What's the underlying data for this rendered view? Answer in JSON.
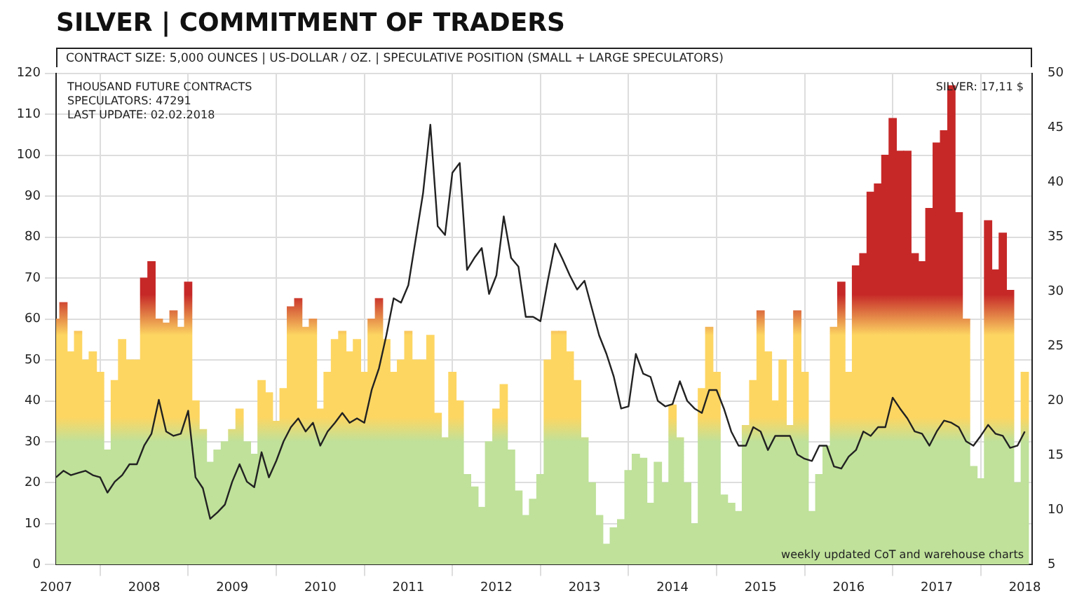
{
  "chart_data": {
    "type": "bar",
    "title": "SILVER | COMMITMENT OF TRADERS",
    "subtitle": "CONTRACT SIZE: 5,000 OUNCES | US-DOLLAR / OZ. | SPECULATIVE POSITION (SMALL + LARGE SPECULATORS)",
    "annotations": [
      "THOUSAND FUTURE CONTRACTS",
      "SPECULATORS: 47291",
      "LAST UPDATE: 02.02.2018",
      "SILVER: 17,11 $",
      "weekly updated CoT and warehouse charts"
    ],
    "x": [
      "2007-01",
      "2007-02",
      "2007-03",
      "2007-04",
      "2007-05",
      "2007-06",
      "2007-07",
      "2007-08",
      "2007-09",
      "2007-10",
      "2007-11",
      "2007-12",
      "2008-01",
      "2008-02",
      "2008-03",
      "2008-04",
      "2008-05",
      "2008-06",
      "2008-07",
      "2008-08",
      "2008-09",
      "2008-10",
      "2008-11",
      "2008-12",
      "2009-01",
      "2009-02",
      "2009-03",
      "2009-04",
      "2009-05",
      "2009-06",
      "2009-07",
      "2009-08",
      "2009-09",
      "2009-10",
      "2009-11",
      "2009-12",
      "2010-01",
      "2010-02",
      "2010-03",
      "2010-04",
      "2010-05",
      "2010-06",
      "2010-07",
      "2010-08",
      "2010-09",
      "2010-10",
      "2010-11",
      "2010-12",
      "2011-01",
      "2011-02",
      "2011-03",
      "2011-04",
      "2011-05",
      "2011-06",
      "2011-07",
      "2011-08",
      "2011-09",
      "2011-10",
      "2011-11",
      "2011-12",
      "2012-01",
      "2012-02",
      "2012-03",
      "2012-04",
      "2012-05",
      "2012-06",
      "2012-07",
      "2012-08",
      "2012-09",
      "2012-10",
      "2012-11",
      "2012-12",
      "2013-01",
      "2013-02",
      "2013-03",
      "2013-04",
      "2013-05",
      "2013-06",
      "2013-07",
      "2013-08",
      "2013-09",
      "2013-10",
      "2013-11",
      "2013-12",
      "2014-01",
      "2014-02",
      "2014-03",
      "2014-04",
      "2014-05",
      "2014-06",
      "2014-07",
      "2014-08",
      "2014-09",
      "2014-10",
      "2014-11",
      "2014-12",
      "2015-01",
      "2015-02",
      "2015-03",
      "2015-04",
      "2015-05",
      "2015-06",
      "2015-07",
      "2015-08",
      "2015-09",
      "2015-10",
      "2015-11",
      "2015-12",
      "2016-01",
      "2016-02",
      "2016-03",
      "2016-04",
      "2016-05",
      "2016-06",
      "2016-07",
      "2016-08",
      "2016-09",
      "2016-10",
      "2016-11",
      "2016-12",
      "2017-01",
      "2017-02",
      "2017-03",
      "2017-04",
      "2017-05",
      "2017-06",
      "2017-07",
      "2017-08",
      "2017-09",
      "2017-10",
      "2017-11",
      "2017-12",
      "2018-01"
    ],
    "series": [
      {
        "axis": "y",
        "color": "#bfe19a",
        "values": [
          60,
          64,
          52,
          57,
          50,
          52,
          47,
          28,
          45,
          55,
          50,
          50,
          70,
          74,
          60,
          59,
          62,
          58,
          69,
          40,
          33,
          25,
          28,
          30,
          33,
          38,
          30,
          27,
          45,
          42,
          35,
          43,
          63,
          65,
          58,
          60,
          38,
          47,
          55,
          57,
          52,
          55,
          47,
          60,
          65,
          55,
          47,
          50,
          57,
          50,
          50,
          56,
          37,
          31,
          47,
          40,
          22,
          19,
          14,
          30,
          38,
          44,
          28,
          18,
          12,
          16,
          22,
          50,
          57,
          57,
          52,
          45,
          31,
          20,
          12,
          5,
          9,
          11,
          23,
          27,
          26,
          15,
          25,
          20,
          39,
          31,
          20,
          10,
          43,
          58,
          47,
          17,
          15,
          13,
          34,
          45,
          62,
          52,
          40,
          50,
          34,
          62,
          47,
          13,
          22,
          29,
          58,
          69,
          47,
          73,
          76,
          91,
          93,
          100,
          109,
          101,
          101,
          76,
          74,
          87,
          103,
          106,
          117,
          86,
          60,
          24,
          21,
          84,
          72,
          81,
          67,
          20,
          47
        ]
      },
      {
        "type": "line",
        "axis": "y2",
        "color": "#222222",
        "values": [
          13.0,
          13.6,
          13.2,
          13.4,
          13.6,
          13.2,
          13.0,
          11.6,
          12.6,
          13.2,
          14.2,
          14.2,
          15.9,
          17.0,
          20.1,
          17.2,
          16.8,
          17.0,
          19.1,
          13.0,
          12.0,
          9.2,
          9.8,
          10.5,
          12.6,
          14.2,
          12.6,
          12.1,
          15.3,
          13.0,
          14.5,
          16.3,
          17.6,
          18.4,
          17.2,
          18.0,
          15.9,
          17.2,
          18.0,
          18.9,
          18.0,
          18.4,
          18.0,
          21.0,
          23.0,
          26.0,
          29.4,
          29.0,
          30.6,
          34.8,
          39.0,
          45.3,
          36.0,
          35.2,
          40.9,
          41.8,
          32.0,
          33.1,
          34.0,
          29.8,
          31.5,
          36.9,
          33.1,
          32.3,
          27.7,
          27.7,
          27.3,
          31.0,
          34.4,
          33.0,
          31.5,
          30.2,
          31.0,
          28.5,
          26.0,
          24.3,
          22.2,
          19.3,
          19.5,
          24.3,
          22.5,
          22.2,
          20.0,
          19.5,
          19.7,
          21.8,
          20.0,
          19.3,
          18.9,
          21.0,
          21.0,
          19.3,
          17.2,
          15.9,
          15.9,
          17.6,
          17.2,
          15.5,
          16.8,
          16.8,
          16.8,
          15.1,
          14.7,
          14.5,
          15.9,
          15.9,
          14.0,
          13.8,
          14.9,
          15.5,
          17.2,
          16.8,
          17.6,
          17.6,
          20.3,
          19.3,
          18.4,
          17.2,
          17.0,
          15.9,
          17.2,
          18.2,
          18.0,
          17.6,
          16.3,
          15.9,
          16.8,
          17.8,
          17.0,
          16.8,
          15.7,
          15.9,
          17.2
        ]
      }
    ],
    "xlim": [
      "2007",
      "2018-02"
    ],
    "xticks": [
      "2007",
      "2008",
      "2009",
      "2010",
      "2011",
      "2012",
      "2013",
      "2014",
      "2015",
      "2016",
      "2017",
      "2018"
    ],
    "ylim": [
      0,
      120
    ],
    "yticks": [
      0,
      10,
      20,
      30,
      40,
      50,
      60,
      70,
      80,
      90,
      100,
      110,
      120
    ],
    "y2lim": [
      5,
      50
    ],
    "y2ticks": [
      5,
      10,
      15,
      20,
      25,
      30,
      35,
      40,
      45,
      50
    ],
    "grid": true,
    "legend": false
  }
}
